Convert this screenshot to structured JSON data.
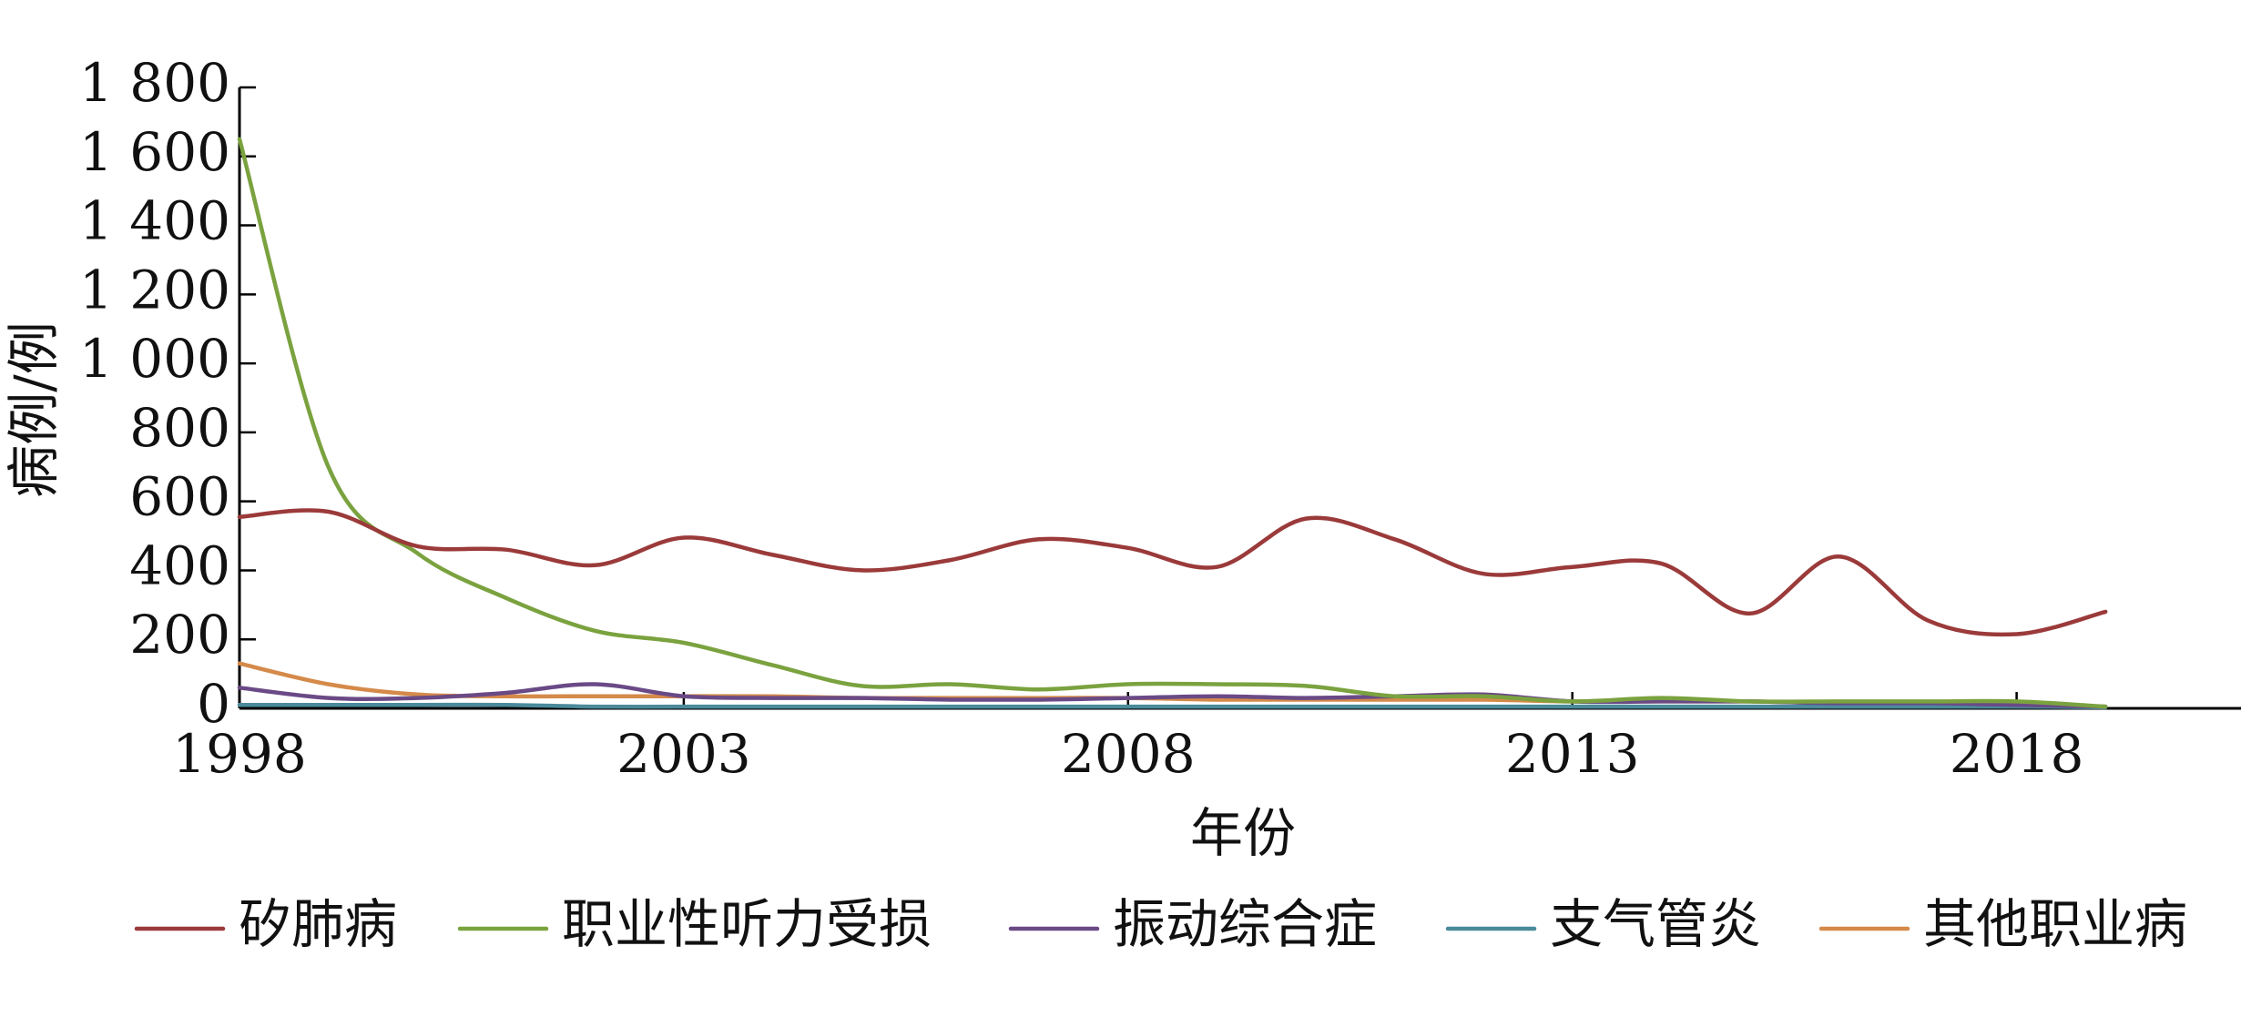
{
  "chart_data": {
    "type": "line",
    "xlabel": "年份",
    "ylabel": "病例/例",
    "x": [
      1998,
      1999,
      2000,
      2001,
      2002,
      2003,
      2004,
      2005,
      2006,
      2007,
      2008,
      2009,
      2010,
      2011,
      2012,
      2013,
      2014,
      2015,
      2016,
      2017,
      2018,
      2019
    ],
    "xticks": [
      1998,
      2003,
      2008,
      2013,
      2018
    ],
    "xlim": [
      1998,
      2019.9
    ],
    "yticks": [
      0,
      200,
      400,
      600,
      800,
      1000,
      1200,
      1400,
      1600,
      1800
    ],
    "ytick_labels": [
      "0",
      "200",
      "400",
      "600",
      "800",
      "1 000",
      "1 200",
      "1 400",
      "1 600",
      "1 800"
    ],
    "ylim": [
      0,
      1800
    ],
    "grid": false,
    "legend_position": "bottom",
    "series": [
      {
        "name": "矽肺病",
        "color": "#9b3a3a",
        "values": [
          555,
          570,
          470,
          460,
          415,
          495,
          445,
          400,
          430,
          490,
          465,
          410,
          550,
          490,
          390,
          410,
          420,
          275,
          440,
          255,
          215,
          280
        ]
      },
      {
        "name": "职业性听力受损",
        "color": "#7aa23f",
        "values": [
          1650,
          700,
          450,
          320,
          225,
          190,
          125,
          65,
          70,
          55,
          70,
          70,
          65,
          35,
          35,
          20,
          30,
          20,
          20,
          20,
          20,
          5
        ]
      },
      {
        "name": "振动综合症",
        "color": "#6a4a86",
        "values": [
          60,
          30,
          30,
          45,
          70,
          35,
          30,
          30,
          25,
          25,
          30,
          35,
          30,
          35,
          40,
          20,
          20,
          20,
          15,
          15,
          10,
          5
        ]
      },
      {
        "name": "支气管炎",
        "color": "#4a8a9a",
        "values": [
          10,
          10,
          10,
          10,
          5,
          5,
          5,
          5,
          5,
          5,
          5,
          5,
          5,
          5,
          5,
          5,
          5,
          5,
          5,
          5,
          5,
          3
        ]
      },
      {
        "name": "其他职业病",
        "color": "#d58a4a",
        "values": [
          130,
          70,
          40,
          35,
          35,
          35,
          35,
          30,
          30,
          30,
          30,
          25,
          25,
          25,
          25,
          20,
          20,
          20,
          15,
          15,
          10,
          5
        ]
      }
    ]
  }
}
